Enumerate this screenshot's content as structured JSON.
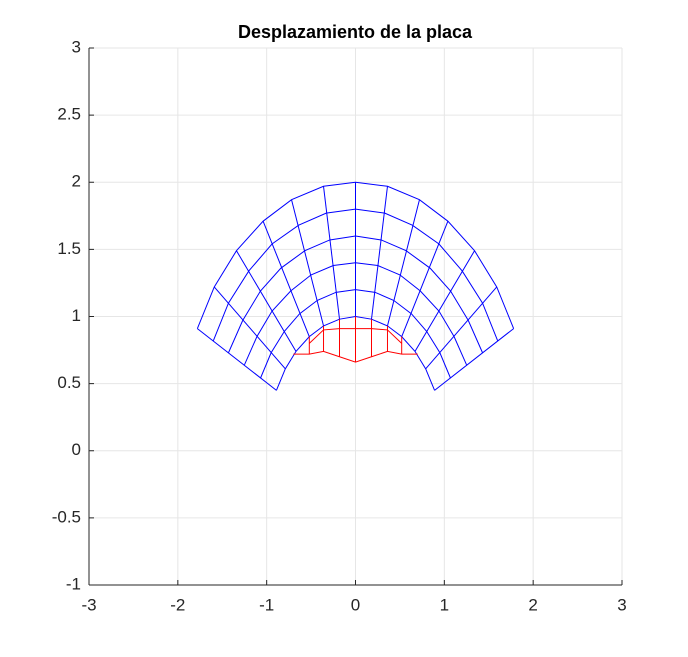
{
  "chart_data": {
    "type": "line",
    "title": "Desplazamiento de la placa",
    "xlim": [
      -3,
      3
    ],
    "ylim": [
      -1,
      3
    ],
    "xticks": [
      -3,
      -2,
      -1,
      0,
      1,
      2,
      3
    ],
    "yticks": [
      -1,
      -0.5,
      0,
      0.5,
      1,
      1.5,
      2,
      2.5,
      3
    ],
    "grid": true,
    "series": [
      {
        "color": "#0000ff",
        "x": [
          -1.78,
          -1.59,
          -1.34,
          -1.04,
          -0.72,
          -0.36,
          0,
          0.36,
          0.72,
          1.04,
          1.34,
          1.59,
          1.78
        ],
        "y": [
          0.91,
          1.22,
          1.49,
          1.71,
          1.87,
          1.97,
          2,
          1.97,
          1.87,
          1.71,
          1.49,
          1.22,
          0.91
        ]
      },
      {
        "color": "#0000ff",
        "x": [
          -1.6,
          -1.43,
          -1.2,
          -0.94,
          -0.64,
          -0.33,
          0,
          0.33,
          0.64,
          0.94,
          1.2,
          1.43,
          1.6
        ],
        "y": [
          0.82,
          1.1,
          1.34,
          1.54,
          1.68,
          1.77,
          1.8,
          1.77,
          1.68,
          1.54,
          1.34,
          1.1,
          0.82
        ]
      },
      {
        "color": "#0000ff",
        "x": [
          -1.43,
          -1.27,
          -1.07,
          -0.84,
          -0.57,
          -0.29,
          0,
          0.29,
          0.57,
          0.84,
          1.07,
          1.27,
          1.43
        ],
        "y": [
          0.73,
          0.97,
          1.19,
          1.36,
          1.49,
          1.57,
          1.6,
          1.57,
          1.49,
          1.36,
          1.19,
          0.97,
          0.73
        ]
      },
      {
        "color": "#0000ff",
        "x": [
          -1.25,
          -1.11,
          -0.94,
          -0.73,
          -0.5,
          -0.25,
          0,
          0.25,
          0.5,
          0.73,
          0.94,
          1.11,
          1.25
        ],
        "y": [
          0.64,
          0.85,
          1.04,
          1.19,
          1.31,
          1.38,
          1.4,
          1.38,
          1.31,
          1.19,
          1.04,
          0.85,
          0.64
        ]
      },
      {
        "color": "#0000ff",
        "x": [
          -1.07,
          -0.95,
          -0.8,
          -0.63,
          -0.43,
          -0.22,
          0,
          0.22,
          0.43,
          0.63,
          0.8,
          0.95,
          1.07
        ],
        "y": [
          0.54,
          0.73,
          0.89,
          1.02,
          1.12,
          1.18,
          1.2,
          1.18,
          1.12,
          1.02,
          0.89,
          0.73,
          0.54
        ]
      },
      {
        "color": "#0000ff",
        "x": [
          -0.89,
          -0.79,
          -0.67,
          -0.52,
          -0.36,
          -0.18,
          0,
          0.18,
          0.36,
          0.52,
          0.67,
          0.79,
          0.89
        ],
        "y": [
          0.45,
          0.61,
          0.74,
          0.85,
          0.93,
          0.98,
          1,
          0.98,
          0.93,
          0.85,
          0.74,
          0.61,
          0.45
        ]
      },
      {
        "color": "#0000ff",
        "x": [
          -0.89,
          -1.78
        ],
        "y": [
          0.45,
          0.91
        ]
      },
      {
        "color": "#0000ff",
        "x": [
          -0.79,
          -1.59
        ],
        "y": [
          0.61,
          1.22
        ]
      },
      {
        "color": "#0000ff",
        "x": [
          -0.67,
          -1.34
        ],
        "y": [
          0.74,
          1.49
        ]
      },
      {
        "color": "#0000ff",
        "x": [
          -0.52,
          -1.04
        ],
        "y": [
          0.85,
          1.71
        ]
      },
      {
        "color": "#0000ff",
        "x": [
          -0.36,
          -0.72
        ],
        "y": [
          0.93,
          1.87
        ]
      },
      {
        "color": "#0000ff",
        "x": [
          -0.18,
          -0.36
        ],
        "y": [
          0.98,
          1.97
        ]
      },
      {
        "color": "#0000ff",
        "x": [
          0,
          0
        ],
        "y": [
          1,
          2
        ]
      },
      {
        "color": "#0000ff",
        "x": [
          0.18,
          0.36
        ],
        "y": [
          0.98,
          1.97
        ]
      },
      {
        "color": "#0000ff",
        "x": [
          0.36,
          0.72
        ],
        "y": [
          0.93,
          1.87
        ]
      },
      {
        "color": "#0000ff",
        "x": [
          0.52,
          1.04
        ],
        "y": [
          0.85,
          1.71
        ]
      },
      {
        "color": "#0000ff",
        "x": [
          0.67,
          1.34
        ],
        "y": [
          0.74,
          1.49
        ]
      },
      {
        "color": "#0000ff",
        "x": [
          0.79,
          1.59
        ],
        "y": [
          0.61,
          1.22
        ]
      },
      {
        "color": "#0000ff",
        "x": [
          0.89,
          1.78
        ],
        "y": [
          0.45,
          0.91
        ]
      },
      {
        "color": "#ff0000",
        "x": [
          -0.52,
          -0.36,
          -0.18,
          0,
          0.18,
          0.36,
          0.52
        ],
        "y": [
          0.8,
          0.9,
          0.91,
          0.91,
          0.91,
          0.9,
          0.8
        ]
      },
      {
        "color": "#ff0000",
        "x": [
          -0.7,
          -0.52,
          -0.36,
          -0.18,
          0,
          0.18,
          0.36,
          0.52,
          0.7
        ],
        "y": [
          0.72,
          0.72,
          0.74,
          0.7,
          0.66,
          0.7,
          0.74,
          0.72,
          0.72
        ]
      },
      {
        "color": "#ff0000",
        "x": [
          -0.52,
          -0.52
        ],
        "y": [
          0.85,
          0.72
        ]
      },
      {
        "color": "#ff0000",
        "x": [
          -0.36,
          -0.36
        ],
        "y": [
          0.93,
          0.74
        ]
      },
      {
        "color": "#ff0000",
        "x": [
          -0.18,
          -0.18
        ],
        "y": [
          0.98,
          0.7
        ]
      },
      {
        "color": "#ff0000",
        "x": [
          0,
          0
        ],
        "y": [
          1,
          0.66
        ]
      },
      {
        "color": "#ff0000",
        "x": [
          0.18,
          0.18
        ],
        "y": [
          0.98,
          0.7
        ]
      },
      {
        "color": "#ff0000",
        "x": [
          0.36,
          0.36
        ],
        "y": [
          0.93,
          0.74
        ]
      },
      {
        "color": "#ff0000",
        "x": [
          0.52,
          0.52
        ],
        "y": [
          0.85,
          0.72
        ]
      }
    ]
  }
}
